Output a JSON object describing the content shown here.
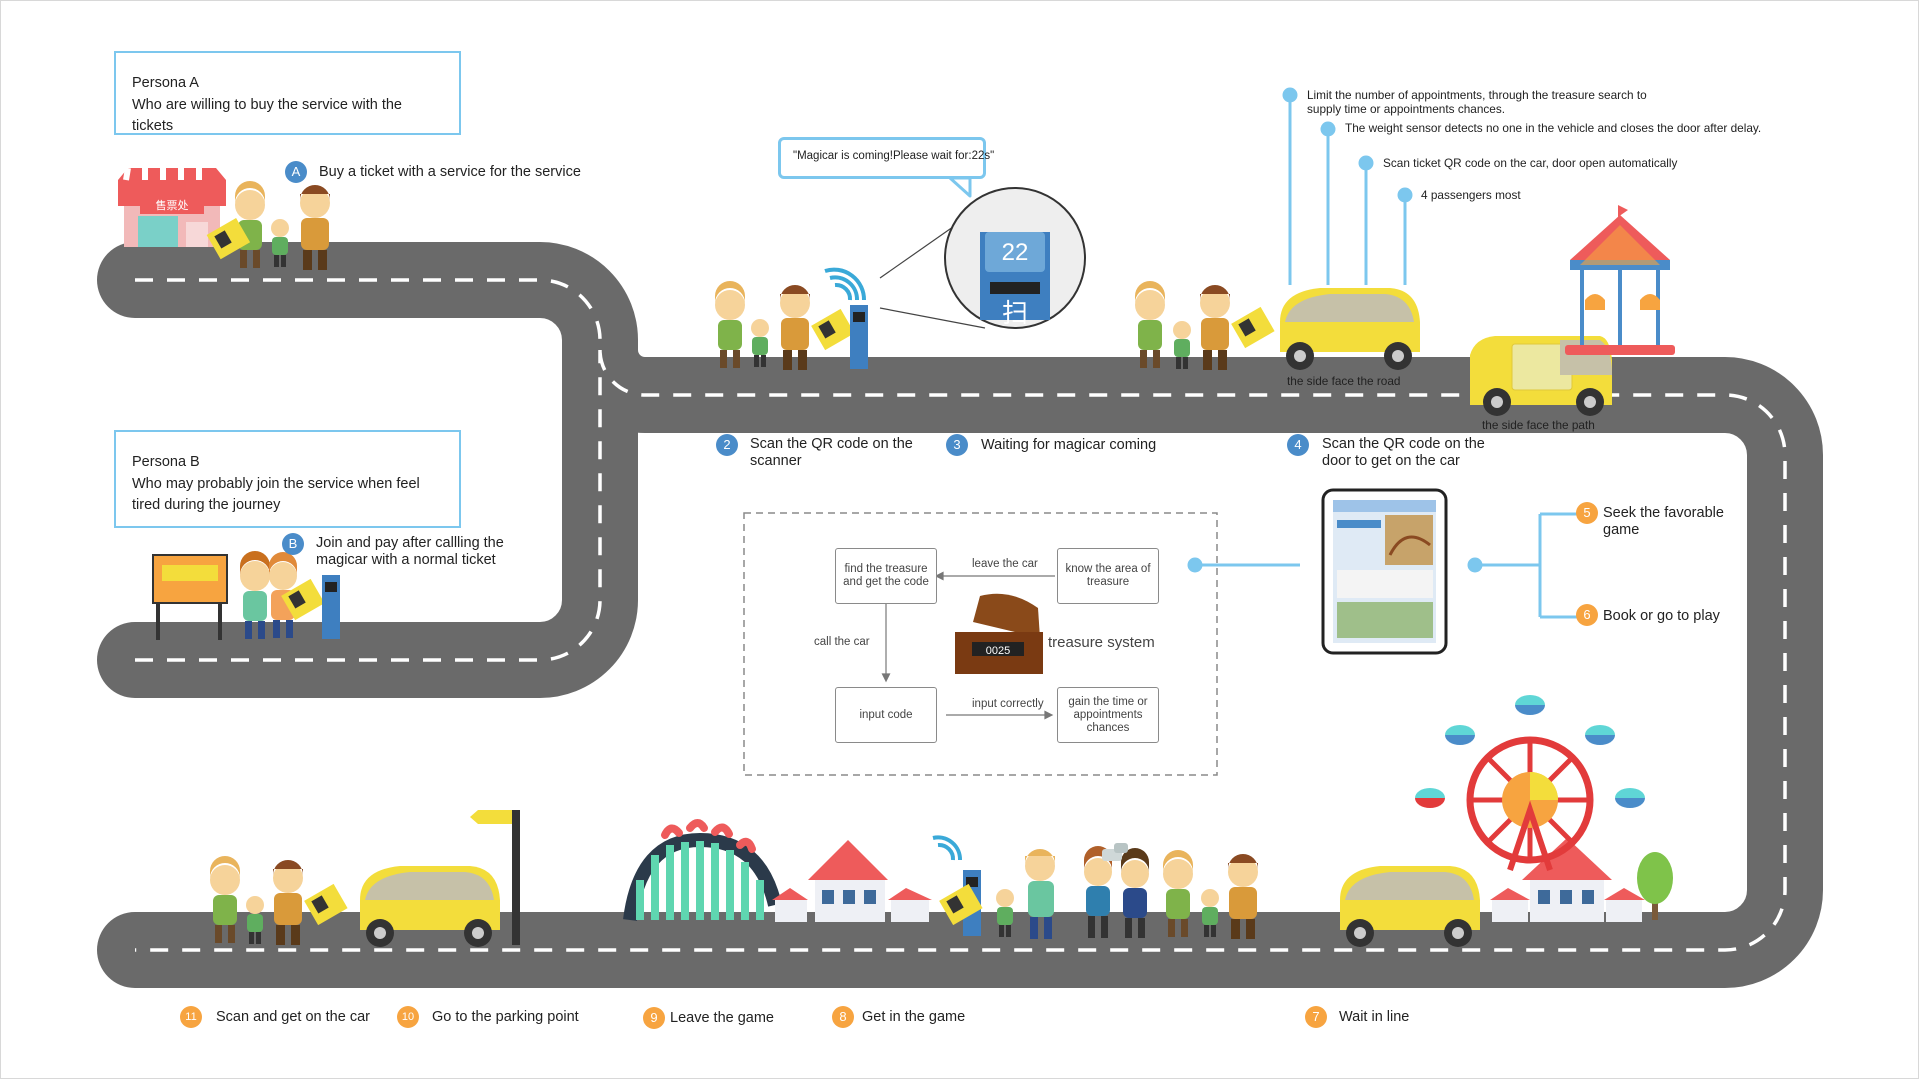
{
  "persona_a": {
    "title": "Persona A",
    "desc": "Who are willing to buy the service with the tickets"
  },
  "persona_b": {
    "title": "Persona B",
    "desc": "Who may probably join the service when feel tired during the journey"
  },
  "steps": {
    "a": {
      "badge": "A",
      "label": "Buy a ticket with a service for the service"
    },
    "b": {
      "badge": "B",
      "label": "Join and pay after callling the magicar with a normal ticket"
    },
    "s2": {
      "badge": "2",
      "label": "Scan the QR code on the scanner"
    },
    "s3": {
      "badge": "3",
      "label": "Waiting for magicar coming"
    },
    "s4": {
      "badge": "4",
      "label": "Scan the QR code on the door to get on the car"
    },
    "s5": {
      "badge": "5",
      "label": "Seek the favorable game"
    },
    "s6": {
      "badge": "6",
      "label": "Book or go to play"
    },
    "s7": {
      "badge": "7",
      "label": "Wait in line"
    },
    "s8": {
      "badge": "8",
      "label": "Get in the game"
    },
    "s9": {
      "badge": "9",
      "label": "Leave the game"
    },
    "s10": {
      "badge": "10",
      "label": "Go to the parking point"
    },
    "s11": {
      "badge": "11",
      "label": "Scan and get on the car"
    }
  },
  "speech_bubble": "\"Magicar is coming!Please wait for:22s\"",
  "scanner_display": "22",
  "scanner_glyph": "扫",
  "ticket_booth_sign": "售票处",
  "car_features": [
    "Limit the number of appointments, through the treasure search to supply time or appointments chances.",
    "The weight sensor detects no one in the vehicle and closes the door after delay.",
    "Scan ticket QR code on the car, door open automatically",
    "4 passengers most"
  ],
  "car_captions": {
    "road": "the side face the road",
    "path": "the side face the path"
  },
  "treasure": {
    "title": "treasure system",
    "boxes": {
      "find": "find the treasure and get the code",
      "know": "know the area of treasure",
      "input": "input code",
      "gain": "gain the time or appointments chances"
    },
    "arrows": {
      "leave": "leave the car",
      "call": "call the car",
      "input": "input correctly"
    },
    "code": "0025"
  },
  "colors": {
    "road": "#6a6a6a",
    "dash": "#ffffff",
    "accent_blue": "#4a8cc9",
    "accent_orange": "#f7a440",
    "car_yellow": "#f3dd3b",
    "frame_blue": "#7cc7ee"
  }
}
